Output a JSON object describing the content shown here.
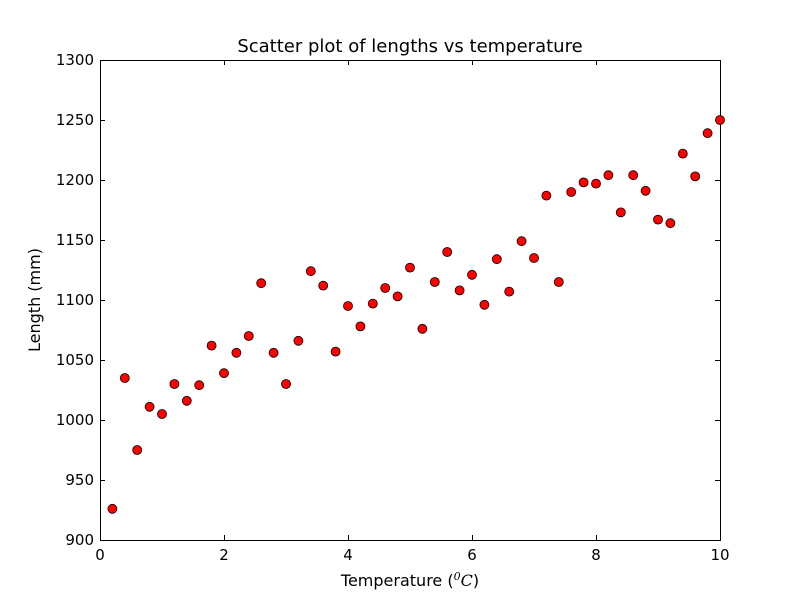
{
  "chart_data": {
    "type": "scatter",
    "title": "Scatter plot of lengths vs temperature",
    "xlabel_main": "Temperature (",
    "xlabel_unit_base": "0",
    "xlabel_unit": "C",
    "xlabel_close": ")",
    "ylabel": "Length (mm)",
    "xlim": [
      0,
      10
    ],
    "ylim": [
      900,
      1300
    ],
    "xticks": [
      0,
      2,
      4,
      6,
      8,
      10
    ],
    "yticks": [
      900,
      950,
      1000,
      1050,
      1100,
      1150,
      1200,
      1250,
      1300
    ],
    "grid": false,
    "marker_color": "#ff0000",
    "marker_edge": "#000000",
    "x": [
      0.2,
      0.4,
      0.6,
      0.8,
      1.0,
      1.2,
      1.4,
      1.6,
      1.8,
      2.0,
      2.2,
      2.4,
      2.6,
      2.8,
      3.0,
      3.2,
      3.4,
      3.6,
      3.8,
      4.0,
      4.2,
      4.4,
      4.6,
      4.8,
      5.0,
      5.2,
      5.4,
      5.6,
      5.8,
      6.0,
      6.2,
      6.4,
      6.6,
      6.8,
      7.0,
      7.2,
      7.4,
      7.6,
      7.8,
      8.0,
      8.2,
      8.4,
      8.6,
      8.8,
      9.0,
      9.2,
      9.4,
      9.6,
      9.8,
      10.0
    ],
    "y": [
      926,
      1035,
      975,
      1011,
      1005,
      1030,
      1016,
      1029,
      1062,
      1039,
      1056,
      1070,
      1114,
      1056,
      1030,
      1066,
      1124,
      1112,
      1057,
      1095,
      1078,
      1097,
      1110,
      1103,
      1127,
      1076,
      1115,
      1140,
      1108,
      1121,
      1096,
      1134,
      1107,
      1149,
      1135,
      1187,
      1115,
      1190,
      1198,
      1197,
      1204,
      1173,
      1204,
      1191,
      1167,
      1164,
      1222,
      1203,
      1239,
      1250
    ]
  }
}
